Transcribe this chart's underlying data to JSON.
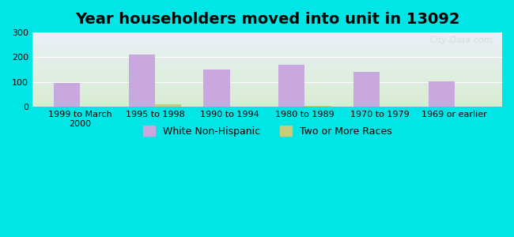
{
  "title": "Year householders moved into unit in 13092",
  "categories": [
    "1999 to March\n2000",
    "1995 to 1998",
    "1990 to 1994",
    "1980 to 1989",
    "1970 to 1979",
    "1969 or earlier"
  ],
  "white_non_hispanic": [
    95,
    210,
    150,
    170,
    142,
    104
  ],
  "two_or_more_races": [
    0,
    10,
    0,
    5,
    0,
    2
  ],
  "bar_color_white": "#c9a8e0",
  "bar_color_two": "#c8cc7a",
  "background_outer": "#00e5e5",
  "background_plot_top": "#e8f0f8",
  "background_plot_bottom": "#d8ecd0",
  "ylim": [
    0,
    300
  ],
  "yticks": [
    0,
    100,
    200,
    300
  ],
  "title_fontsize": 14,
  "tick_fontsize": 8,
  "legend_fontsize": 9,
  "bar_width": 0.35,
  "watermark": "City-Data.com"
}
